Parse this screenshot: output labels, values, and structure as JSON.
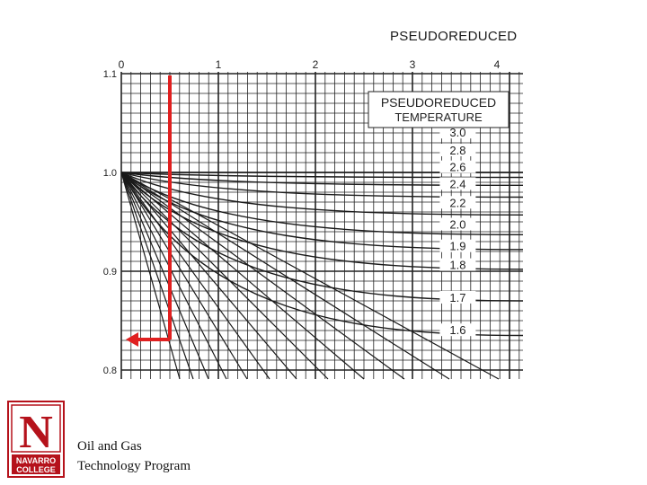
{
  "chart_data": {
    "type": "line",
    "title": "PSEUDOREDUCED",
    "legend_title": [
      "PSEUDOREDUCED",
      "TEMPERATURE"
    ],
    "x_ticks": [
      "0",
      "1",
      "2",
      "3",
      "4"
    ],
    "xlim": [
      0,
      4.15
    ],
    "y_ticks": [
      "1.1",
      "1.0",
      "0.9",
      "0.8"
    ],
    "ylim": [
      0.79,
      1.1
    ],
    "grid": true,
    "series": [
      {
        "name": "3.0",
        "x": [
          0,
          4.15
        ],
        "y": [
          1.0,
          1.0
        ]
      },
      {
        "name": "2.8",
        "x": [
          0,
          4.15
        ],
        "y": [
          1.0,
          0.995
        ]
      },
      {
        "name": "2.6",
        "x": [
          0,
          4.15
        ],
        "y": [
          1.0,
          0.987
        ]
      },
      {
        "name": "2.4",
        "x": [
          0,
          4.15
        ],
        "y": [
          1.0,
          0.975
        ]
      },
      {
        "name": "2.2",
        "x": [
          0,
          4.15
        ],
        "y": [
          1.0,
          0.957
        ]
      },
      {
        "name": "2.0",
        "x": [
          0,
          4.15
        ],
        "y": [
          1.0,
          0.937
        ]
      },
      {
        "name": "1.9",
        "x": [
          0,
          4.15
        ],
        "y": [
          1.0,
          0.922
        ]
      },
      {
        "name": "1.8",
        "x": [
          0,
          4.15
        ],
        "y": [
          1.0,
          0.902
        ]
      },
      {
        "name": "1.7",
        "x": [
          0,
          4.15
        ],
        "y": [
          1.0,
          0.87
        ]
      },
      {
        "name": "1.6",
        "x": [
          0,
          4.15
        ],
        "y": [
          1.0,
          0.835
        ]
      }
    ],
    "curve_labels": [
      {
        "text": "3.0",
        "x": 3.3,
        "y": 1.038
      },
      {
        "text": "2.8",
        "x": 3.3,
        "y": 1.02
      },
      {
        "text": "2.6",
        "x": 3.3,
        "y": 1.003
      },
      {
        "text": "2.4",
        "x": 3.3,
        "y": 0.986
      },
      {
        "text": "2.2",
        "x": 3.3,
        "y": 0.967
      },
      {
        "text": "2.0",
        "x": 3.3,
        "y": 0.945
      },
      {
        "text": "1.9",
        "x": 3.3,
        "y": 0.923
      },
      {
        "text": "1.8",
        "x": 3.3,
        "y": 0.904
      },
      {
        "text": "1.7",
        "x": 3.3,
        "y": 0.871
      },
      {
        "text": "1.6",
        "x": 3.3,
        "y": 0.838
      }
    ],
    "annotation": {
      "color": "#e02020",
      "vertical_x": 0.5,
      "from_y": 1.1,
      "to_y": 0.84,
      "arrow_to_x": 0.05
    }
  },
  "footer": {
    "logo_letter": "N",
    "logo_line1": "NAVARRO",
    "logo_line2": "COLLEGE",
    "logo_color": "#b5121b",
    "line1": "Oil and Gas",
    "line2": "Technology Program"
  }
}
